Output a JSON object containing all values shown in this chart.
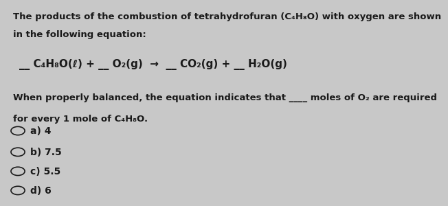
{
  "background_color": "#c8c8c8",
  "title_line1": "The products of the combustion of tetrahydrofuran (C₄H₈O) with oxygen are shown",
  "title_line2": "in the following equation:",
  "equation": "__ C₄H₈O(ℓ) + __ O₂(g)  →  __ CO₂(g) + __ H₂O(g)",
  "question_line1": "When properly balanced, the equation indicates that ____ moles of O₂ are required",
  "question_line2": "for every 1 mole of C₄H₈O.",
  "options": [
    "a) 4",
    "b) 7.5",
    "c) 5.5",
    "d) 6"
  ],
  "text_color": "#1a1a1a",
  "font_size_body": 9.5,
  "font_size_equation": 11,
  "font_size_options": 10
}
